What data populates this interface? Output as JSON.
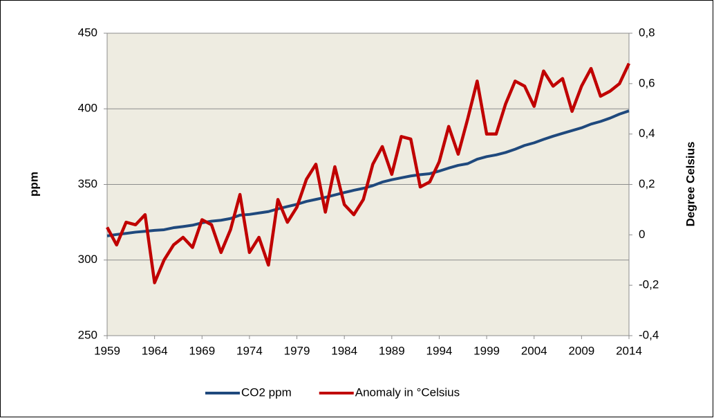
{
  "chart_data": {
    "type": "line",
    "x": [
      1959,
      1960,
      1961,
      1962,
      1963,
      1964,
      1965,
      1966,
      1967,
      1968,
      1969,
      1970,
      1971,
      1972,
      1973,
      1974,
      1975,
      1976,
      1977,
      1978,
      1979,
      1980,
      1981,
      1982,
      1983,
      1984,
      1985,
      1986,
      1987,
      1988,
      1989,
      1990,
      1991,
      1992,
      1993,
      1994,
      1995,
      1996,
      1997,
      1998,
      1999,
      2000,
      2001,
      2002,
      2003,
      2004,
      2005,
      2006,
      2007,
      2008,
      2009,
      2010,
      2011,
      2012,
      2013,
      2014
    ],
    "xlim": [
      1959,
      2014
    ],
    "xticks": [
      1959,
      1964,
      1969,
      1974,
      1979,
      1984,
      1989,
      1994,
      1999,
      2004,
      2009,
      2014
    ],
    "ylabel": "ppm",
    "y2label": "Degree Celsius",
    "ylim": [
      250,
      450
    ],
    "yticks": [
      250,
      300,
      350,
      400,
      450
    ],
    "y2lim": [
      -0.4,
      0.8
    ],
    "y2ticks": [
      {
        "value": -0.4,
        "label": "-0,4"
      },
      {
        "value": -0.2,
        "label": "-0,2"
      },
      0,
      {
        "value": 0.2,
        "label": "0,2"
      },
      {
        "value": 0.4,
        "label": "0,4"
      },
      {
        "value": 0.6,
        "label": "0,6"
      },
      {
        "value": 0.8,
        "label": "0,8"
      }
    ],
    "grid": true,
    "legend": "bottom",
    "series": [
      {
        "name": "CO2 ppm",
        "color": "#1f497d",
        "values": [
          315.97,
          316.91,
          317.64,
          318.45,
          318.99,
          319.62,
          320.04,
          321.38,
          322.16,
          323.04,
          324.62,
          325.68,
          326.32,
          327.45,
          329.68,
          330.18,
          331.11,
          332.04,
          333.83,
          335.4,
          336.84,
          338.75,
          340.11,
          341.45,
          343.05,
          344.65,
          346.12,
          347.42,
          349.19,
          351.57,
          353.12,
          354.39,
          355.61,
          356.45,
          357.1,
          358.83,
          360.82,
          362.61,
          363.73,
          366.7,
          368.38,
          369.55,
          371.14,
          373.28,
          375.8,
          377.52,
          379.8,
          381.9,
          383.79,
          385.6,
          387.43,
          389.9,
          391.65,
          393.85,
          396.52,
          398.65
        ]
      },
      {
        "name": "Anomaly in °Celsius",
        "color": "#c00000",
        "axis": "y2",
        "values": [
          0.03,
          -0.04,
          0.05,
          0.04,
          0.08,
          -0.19,
          -0.1,
          -0.04,
          -0.01,
          -0.05,
          0.06,
          0.04,
          -0.07,
          0.02,
          0.16,
          -0.07,
          -0.01,
          -0.12,
          0.14,
          0.05,
          0.11,
          0.22,
          0.28,
          0.09,
          0.27,
          0.12,
          0.08,
          0.14,
          0.28,
          0.35,
          0.24,
          0.39,
          0.38,
          0.19,
          0.21,
          0.29,
          0.43,
          0.32,
          0.46,
          0.61,
          0.4,
          0.4,
          0.52,
          0.61,
          0.59,
          0.51,
          0.65,
          0.59,
          0.62,
          0.49,
          0.59,
          0.66,
          0.55,
          0.57,
          0.6,
          0.68
        ]
      }
    ]
  }
}
